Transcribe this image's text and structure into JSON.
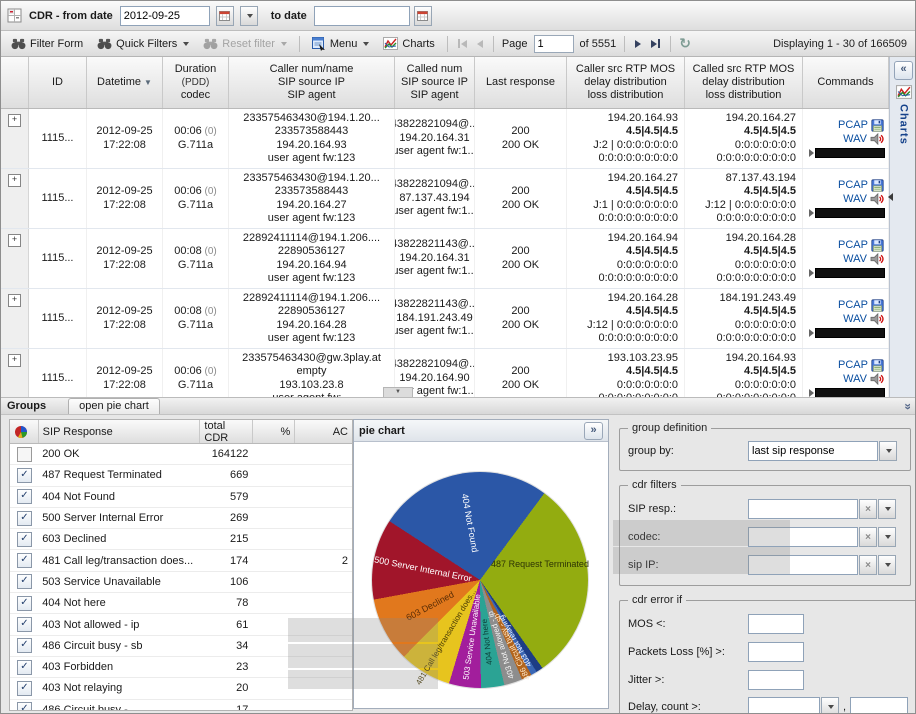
{
  "toolbar_top": {
    "title": "CDR - from date",
    "from_date": "2012-09-25",
    "to_date_label": "to date",
    "to_date_value": ""
  },
  "toolbar_actions": {
    "filter_form": "Filter Form",
    "quick_filters": "Quick Filters",
    "reset_filter": "Reset filter",
    "menu": "Menu",
    "charts": "Charts",
    "page_label": "Page",
    "page_value": "1",
    "pages_total": "of 5551",
    "displaying": "Displaying 1 - 30 of 166509"
  },
  "side_panel": {
    "label": "Charts",
    "collapse_glyph": "«"
  },
  "grid": {
    "columns": [
      {
        "key": "expander",
        "lines": [
          ""
        ]
      },
      {
        "key": "id",
        "lines": [
          "ID"
        ]
      },
      {
        "key": "datetime",
        "lines": [
          "Datetime"
        ],
        "sorted": true
      },
      {
        "key": "duration",
        "lines": [
          "Duration",
          "(PDD)",
          "codec"
        ]
      },
      {
        "key": "caller",
        "lines": [
          "Caller num/name",
          "SIP source IP",
          "SIP agent"
        ]
      },
      {
        "key": "called",
        "lines": [
          "Called num",
          "SIP source IP",
          "SIP agent"
        ]
      },
      {
        "key": "last-response",
        "lines": [
          "Last response"
        ]
      },
      {
        "key": "caller-rtp",
        "lines": [
          "Caller src RTP MOS",
          "delay distribution",
          "loss distribution"
        ]
      },
      {
        "key": "called-rtp",
        "lines": [
          "Called src RTP MOS",
          "delay distribution",
          "loss distribution"
        ]
      },
      {
        "key": "commands",
        "lines": [
          "Commands"
        ]
      }
    ],
    "commands": {
      "pcap": "PCAP",
      "wav": "WAV"
    },
    "rows": [
      {
        "id": "1115...",
        "datetime": [
          "2012-09-25",
          "17:22:08"
        ],
        "duration": "00:06",
        "pdd": "(0)",
        "codec": "G.711a",
        "caller": [
          "233575463430@194.1.20...",
          "233573588443",
          "194.20.164.93",
          "user agent fw:123"
        ],
        "called": [
          "43822821094@...",
          "194.20.164.31",
          "user agent fw:1..."
        ],
        "last_response": [
          "200",
          "200 OK"
        ],
        "caller_rtp": {
          "ip": "194.20.164.93",
          "mos": "4.5|4.5|4.5",
          "delay": "J:2 | 0:0:0:0:0:0:0",
          "loss": "0:0:0:0:0:0:0:0:0"
        },
        "called_rtp": {
          "ip": "194.20.164.27",
          "mos": "4.5|4.5|4.5",
          "delay": "0:0:0:0:0:0:0",
          "loss": "0:0:0:0:0:0:0:0:0"
        }
      },
      {
        "id": "1115...",
        "datetime": [
          "2012-09-25",
          "17:22:08"
        ],
        "duration": "00:06",
        "pdd": "(0)",
        "codec": "G.711a",
        "caller": [
          "233575463430@194.1.20...",
          "233573588443",
          "194.20.164.27",
          "user agent fw:123"
        ],
        "called": [
          "43822821094@...",
          "87.137.43.194",
          "user agent fw:1..."
        ],
        "last_response": [
          "200",
          "200 OK"
        ],
        "caller_rtp": {
          "ip": "194.20.164.27",
          "mos": "4.5|4.5|4.5",
          "delay": "J:1 | 0:0:0:0:0:0:0",
          "loss": "0:0:0:0:0:0:0:0:0"
        },
        "called_rtp": {
          "ip": "87.137.43.194",
          "mos": "4.5|4.5|4.5",
          "delay": "J:12 | 0:0:0:0:0:0:0",
          "loss": "0:0:0:0:0:0:0:0:0"
        }
      },
      {
        "id": "1115...",
        "datetime": [
          "2012-09-25",
          "17:22:08"
        ],
        "duration": "00:08",
        "pdd": "(0)",
        "codec": "G.711a",
        "caller": [
          "22892411114@194.1.206....",
          "22890536127",
          "194.20.164.94",
          "user agent fw:123"
        ],
        "called": [
          "43822821143@...",
          "194.20.164.31",
          "user agent fw:1..."
        ],
        "last_response": [
          "200",
          "200 OK"
        ],
        "caller_rtp": {
          "ip": "194.20.164.94",
          "mos": "4.5|4.5|4.5",
          "delay": "0:0:0:0:0:0:0",
          "loss": "0:0:0:0:0:0:0:0:0"
        },
        "called_rtp": {
          "ip": "194.20.164.28",
          "mos": "4.5|4.5|4.5",
          "delay": "0:0:0:0:0:0:0",
          "loss": "0:0:0:0:0:0:0:0:0"
        }
      },
      {
        "id": "1115...",
        "datetime": [
          "2012-09-25",
          "17:22:08"
        ],
        "duration": "00:08",
        "pdd": "(0)",
        "codec": "G.711a",
        "caller": [
          "22892411114@194.1.206....",
          "22890536127",
          "194.20.164.28",
          "user agent fw:123"
        ],
        "called": [
          "43822821143@...",
          "184.191.243.49",
          "user agent fw:1..."
        ],
        "last_response": [
          "200",
          "200 OK"
        ],
        "caller_rtp": {
          "ip": "194.20.164.28",
          "mos": "4.5|4.5|4.5",
          "delay": "J:12 | 0:0:0:0:0:0:0",
          "loss": "0:0:0:0:0:0:0:0:0"
        },
        "called_rtp": {
          "ip": "184.191.243.49",
          "mos": "4.5|4.5|4.5",
          "delay": "0:0:0:0:0:0:0",
          "loss": "0:0:0:0:0:0:0:0:0"
        }
      },
      {
        "id": "1115...",
        "datetime": [
          "2012-09-25",
          "17:22:08"
        ],
        "duration": "00:06",
        "pdd": "(0)",
        "codec": "G.711a",
        "caller": [
          "233575463430@gw.3play.at",
          "empty",
          "193.103.23.8",
          "user agent fw:..."
        ],
        "called": [
          "43822821094@...",
          "194.20.164.90",
          "user agent fw:1..."
        ],
        "last_response": [
          "200",
          "200 OK"
        ],
        "caller_rtp": {
          "ip": "193.103.23.95",
          "mos": "4.5|4.5|4.5",
          "delay": "0:0:0:0:0:0:0",
          "loss": "0:0:0:0:0:0:0:0:0"
        },
        "called_rtp": {
          "ip": "194.20.164.93",
          "mos": "4.5|4.5|4.5",
          "delay": "0:0:0:0:0:0:0",
          "loss": "0:0:0:0:0:0:0:0:0"
        }
      }
    ]
  },
  "groups_bar": {
    "title": "Groups",
    "tab": "open pie chart"
  },
  "sip_grid": {
    "columns": {
      "response": "SIP Response",
      "total": "total CDR",
      "pct": "%",
      "acd": "AC"
    },
    "rows": [
      {
        "checked": false,
        "label": "200 OK",
        "total": "164122",
        "acd": ""
      },
      {
        "checked": true,
        "label": "487 Request Terminated",
        "total": "669",
        "acd": ""
      },
      {
        "checked": true,
        "label": "404 Not Found",
        "total": "579",
        "acd": ""
      },
      {
        "checked": true,
        "label": "500 Server Internal Error",
        "total": "269",
        "acd": ""
      },
      {
        "checked": true,
        "label": "603 Declined",
        "total": "215",
        "acd": ""
      },
      {
        "checked": true,
        "label": "481 Call leg/transaction does...",
        "total": "174",
        "acd": "2"
      },
      {
        "checked": true,
        "label": "503 Service Unavailable",
        "total": "106",
        "acd": ""
      },
      {
        "checked": true,
        "label": "404 Not here",
        "total": "78",
        "acd": ""
      },
      {
        "checked": true,
        "label": "403 Not allowed - ip",
        "total": "61",
        "acd": ""
      },
      {
        "checked": true,
        "label": "486 Circuit busy - sb",
        "total": "34",
        "acd": ""
      },
      {
        "checked": true,
        "label": "403 Forbidden",
        "total": "23",
        "acd": ""
      },
      {
        "checked": true,
        "label": "403 Not relaying",
        "total": "20",
        "acd": ""
      },
      {
        "checked": true,
        "label": "486 Circuit busy - ...",
        "total": "17",
        "acd": ""
      }
    ]
  },
  "pie_panel": {
    "title": "pie chart",
    "expand_glyph": "»"
  },
  "chart_data": {
    "type": "pie",
    "title": "pie chart",
    "group_by": "last sip response",
    "start_angle_deg": -57,
    "order": "clockwise from top",
    "slices": [
      {
        "label": "404 Not Found",
        "value": 579,
        "color": "#2b57a7",
        "text_color": "#ffffff",
        "show_label": true
      },
      {
        "label": "487 Request Terminated",
        "value": 669,
        "color": "#93ac10",
        "text_color": "#2e3505",
        "show_label": true
      },
      {
        "label": "403 Forbidden",
        "value": 23,
        "color": "#1d3d85",
        "text_color": "#ffffff",
        "show_label": false
      },
      {
        "label": "403 Not relaying",
        "value": 20,
        "color": "#3a67b5",
        "text_color": "#eef2ff",
        "show_label": true
      },
      {
        "label": "486 Circuit busy - sb",
        "value": 34,
        "color": "#b2641c",
        "text_color": "#ffe8c8",
        "show_label": true
      },
      {
        "label": "403 Not allowed - ip",
        "value": 61,
        "color": "#8d8d8d",
        "text_color": "#f4f4f4",
        "show_label": true
      },
      {
        "label": "404 Not here",
        "value": 78,
        "color": "#2ba394",
        "text_color": "#0a3f38",
        "show_label": true
      },
      {
        "label": "503 Service Unavailable",
        "value": 106,
        "color": "#a21e9c",
        "text_color": "#ffffff",
        "show_label": true
      },
      {
        "label": "481 Call leg/transaction does...",
        "value": 174,
        "color": "#e7c41e",
        "text_color": "#4a3c06",
        "show_label": true
      },
      {
        "label": "603 Declined",
        "value": 215,
        "color": "#e1781d",
        "text_color": "#5a2d06",
        "show_label": true
      },
      {
        "label": "500 Server Internal Error",
        "value": 269,
        "color": "#a1152a",
        "text_color": "#ffffff",
        "show_label": true
      }
    ]
  },
  "form": {
    "group_definition": {
      "legend": "group definition",
      "group_by_label": "group by:",
      "group_by_value": "last sip response"
    },
    "cdr_filters": {
      "legend": "cdr filters",
      "rows": [
        {
          "label": "SIP resp.:",
          "value": ""
        },
        {
          "label": "codec:",
          "value": ""
        },
        {
          "label": "sip IP:",
          "value": ""
        }
      ]
    },
    "cdr_error": {
      "legend": "cdr error if",
      "rows": [
        {
          "label": "MOS <:",
          "value": ""
        },
        {
          "label": "Packets Loss [%] >:",
          "value": ""
        },
        {
          "label": "Jitter >:",
          "value": ""
        }
      ],
      "delay_label": "Delay, count >:",
      "delay_value": "",
      "comma": ",",
      "count_value": ""
    }
  }
}
